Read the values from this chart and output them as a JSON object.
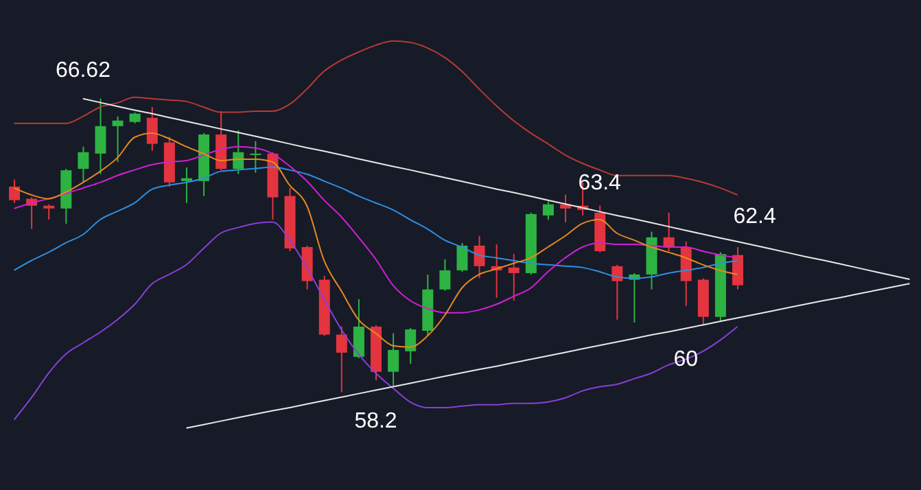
{
  "chart_data": {
    "type": "candlestick",
    "categories": [
      null,
      null,
      null,
      null,
      null,
      null,
      null,
      null,
      null,
      null,
      null,
      null,
      null,
      null,
      null,
      null,
      null,
      null,
      null,
      null,
      null,
      null,
      null,
      null,
      null,
      null,
      null,
      null,
      null,
      null,
      null,
      null,
      null,
      null,
      null,
      null,
      null,
      null,
      null,
      null,
      null,
      null,
      null,
      null,
      null,
      null,
      null,
      null,
      null,
      null,
      null,
      null,
      null
    ],
    "colors": [
      "#e3343f",
      "#e3343f",
      "#e3343f",
      "#2db342",
      "#2db342",
      "#2db342",
      "#2db342",
      "#2db342",
      "#e3343f",
      "#e3343f",
      "#2db342",
      "#2db342",
      "#e3343f",
      "#2db342",
      "#2db342",
      "#e3343f",
      "#e3343f",
      "#e3343f",
      "#e3343f",
      "#e3343f",
      "#2db342",
      "#e3343f",
      "#2db342",
      "#2db342",
      "#2db342",
      "#2db342",
      "#2db342",
      "#e3343f",
      "#e3343f",
      "#e3343f",
      "#2db342",
      "#2db342",
      "#e3343f",
      "#e3343f",
      "#e3343f",
      "#e3343f",
      "#2db342",
      "#2db342",
      "#e3343f",
      "#e3343f",
      "#e3343f",
      "#2db342",
      "#e3343f",
      null,
      null,
      null,
      null,
      null,
      null,
      null,
      null,
      null,
      null
    ],
    "ohlc": [
      [
        64.09,
        64.29,
        63.62,
        63.7
      ],
      [
        63.74,
        63.78,
        62.87,
        63.54
      ],
      [
        63.54,
        63.58,
        63.14,
        63.46
      ],
      [
        63.46,
        64.6,
        63.02,
        64.56
      ],
      [
        64.6,
        65.24,
        64.21,
        65.08
      ],
      [
        65.04,
        66.62,
        64.45,
        65.83
      ],
      [
        65.83,
        66.11,
        64.8,
        65.99
      ],
      [
        65.95,
        66.22,
        65.91,
        66.19
      ],
      [
        66.07,
        66.38,
        65.12,
        65.32
      ],
      [
        65.36,
        65.52,
        64.09,
        64.21
      ],
      [
        64.25,
        64.64,
        63.62,
        64.33
      ],
      [
        64.25,
        65.63,
        63.82,
        65.59
      ],
      [
        65.59,
        66.26,
        64.56,
        64.6
      ],
      [
        64.6,
        65.71,
        64.45,
        65.08
      ],
      [
        65.0,
        65.4,
        64.49,
        65.04
      ],
      [
        65.04,
        65.08,
        63.14,
        63.78
      ],
      [
        63.82,
        64.05,
        62.23,
        62.31
      ],
      [
        62.35,
        62.39,
        61.13,
        61.37
      ],
      [
        61.41,
        61.52,
        59.79,
        59.83
      ],
      [
        59.83,
        60.06,
        58.17,
        59.31
      ],
      [
        59.19,
        60.85,
        59.15,
        60.06
      ],
      [
        60.06,
        60.1,
        58.52,
        58.76
      ],
      [
        58.76,
        59.87,
        58.36,
        59.39
      ],
      [
        59.35,
        60.02,
        58.99,
        59.98
      ],
      [
        59.94,
        61.56,
        59.79,
        61.13
      ],
      [
        61.13,
        62.0,
        61.09,
        61.68
      ],
      [
        61.68,
        62.47,
        61.64,
        62.39
      ],
      [
        62.39,
        62.67,
        61.45,
        61.8
      ],
      [
        61.8,
        62.43,
        60.89,
        61.68
      ],
      [
        61.76,
        62.15,
        60.81,
        61.6
      ],
      [
        61.6,
        63.34,
        61.56,
        63.3
      ],
      [
        63.26,
        63.66,
        63.14,
        63.58
      ],
      [
        63.58,
        63.86,
        63.06,
        63.46
      ],
      [
        63.54,
        64.21,
        63.26,
        63.42
      ],
      [
        63.34,
        63.54,
        62.2,
        62.23
      ],
      [
        61.8,
        61.84,
        60.26,
        61.37
      ],
      [
        61.41,
        61.6,
        60.18,
        61.56
      ],
      [
        61.56,
        62.79,
        61.13,
        62.63
      ],
      [
        62.63,
        63.34,
        62.23,
        62.35
      ],
      [
        62.35,
        62.51,
        60.65,
        61.37
      ],
      [
        61.41,
        61.45,
        60.1,
        60.34
      ],
      [
        60.34,
        62.2,
        60.22,
        62.15
      ],
      [
        62.12,
        62.35,
        61.13,
        61.25
      ],
      null,
      null,
      null,
      null,
      null,
      null,
      null,
      null,
      null,
      null
    ],
    "series": [
      {
        "type": "line",
        "color": "#b83a34",
        "values": [
          65.91,
          65.91,
          65.91,
          65.91,
          66.11,
          66.38,
          66.5,
          66.66,
          66.62,
          66.58,
          66.54,
          66.38,
          66.23,
          66.23,
          66.26,
          66.26,
          66.46,
          66.9,
          67.41,
          67.73,
          67.96,
          68.16,
          68.28,
          68.24,
          68.08,
          67.81,
          67.41,
          66.9,
          66.42,
          65.99,
          65.63,
          65.32,
          65.0,
          64.76,
          64.57,
          64.41,
          64.41,
          64.41,
          64.41,
          64.33,
          64.21,
          64.05,
          63.85,
          null,
          null,
          null,
          null,
          null,
          null,
          null,
          null,
          null,
          null
        ]
      },
      {
        "type": "line",
        "color": "#8a3fd8",
        "values": [
          57.38,
          58.01,
          58.72,
          59.27,
          59.59,
          59.9,
          60.26,
          60.7,
          61.29,
          61.56,
          61.84,
          62.31,
          62.75,
          62.91,
          63.03,
          63.07,
          62.55,
          61.76,
          60.85,
          59.98,
          59.27,
          58.72,
          58.29,
          57.89,
          57.73,
          57.73,
          57.77,
          57.81,
          57.81,
          57.85,
          57.85,
          57.89,
          58.01,
          58.21,
          58.33,
          58.4,
          58.56,
          58.72,
          58.96,
          59.12,
          59.35,
          59.67,
          60.06,
          null,
          null,
          null,
          null,
          null,
          null,
          null,
          null,
          null,
          null
        ]
      },
      {
        "type": "line",
        "color": "#2f8fe0",
        "values": [
          61.68,
          61.96,
          62.2,
          62.47,
          62.71,
          63.14,
          63.38,
          63.62,
          64.01,
          64.13,
          64.21,
          64.33,
          64.53,
          64.57,
          64.61,
          64.65,
          64.57,
          64.45,
          64.25,
          64.05,
          63.82,
          63.62,
          63.42,
          63.14,
          62.87,
          62.55,
          62.35,
          62.12,
          62.04,
          61.96,
          61.88,
          61.84,
          61.8,
          61.76,
          61.64,
          61.49,
          61.45,
          61.49,
          61.6,
          61.68,
          61.76,
          61.88,
          61.96,
          null,
          null,
          null,
          null,
          null,
          null,
          null,
          null,
          null,
          null
        ]
      },
      {
        "type": "line",
        "color": "#d21fd6",
        "values": [
          63.46,
          63.62,
          63.74,
          63.89,
          64.05,
          64.21,
          64.41,
          64.57,
          64.72,
          64.8,
          64.84,
          65.0,
          65.16,
          65.24,
          65.2,
          65.04,
          64.68,
          64.25,
          63.7,
          63.22,
          62.63,
          62.0,
          61.25,
          60.81,
          60.58,
          60.46,
          60.46,
          60.54,
          60.7,
          60.93,
          61.17,
          61.64,
          62.04,
          62.35,
          62.47,
          62.43,
          62.43,
          62.39,
          62.35,
          62.35,
          62.23,
          62.12,
          62.04,
          null,
          null,
          null,
          null,
          null,
          null,
          null,
          null,
          null,
          null
        ]
      },
      {
        "type": "line",
        "color": "#e8891e",
        "values": [
          64.05,
          63.85,
          63.74,
          63.93,
          64.21,
          64.53,
          64.92,
          65.51,
          65.63,
          65.47,
          65.24,
          65.04,
          64.84,
          64.88,
          64.88,
          64.8,
          64.13,
          63.54,
          61.96,
          61.09,
          60.26,
          59.87,
          59.51,
          59.47,
          59.79,
          60.38,
          61.17,
          61.56,
          61.72,
          61.88,
          62.04,
          62.35,
          62.67,
          63.03,
          63.14,
          62.75,
          62.55,
          62.35,
          62.2,
          62.04,
          61.84,
          61.68,
          61.56,
          null,
          null,
          null,
          null,
          null,
          null,
          null,
          null,
          null,
          null
        ]
      },
      {
        "type": "line",
        "color": "#e8e8e8",
        "values": [
          null,
          null,
          null,
          null,
          66.62,
          66.51,
          66.4,
          66.29,
          66.19,
          66.08,
          65.97,
          65.86,
          65.75,
          65.65,
          65.54,
          65.43,
          65.32,
          65.21,
          65.11,
          65.0,
          64.89,
          64.78,
          64.67,
          64.57,
          64.46,
          64.35,
          64.24,
          64.13,
          64.02,
          63.92,
          63.81,
          63.7,
          63.59,
          63.48,
          63.37,
          63.26,
          63.16,
          63.05,
          62.94,
          62.83,
          62.72,
          62.61,
          62.51,
          62.4,
          62.29,
          62.18,
          62.07,
          61.97,
          61.86,
          61.75,
          61.64,
          61.53,
          61.42
        ]
      },
      {
        "type": "line",
        "color": "#e8e8e8",
        "values": [
          null,
          null,
          null,
          null,
          null,
          null,
          null,
          null,
          null,
          null,
          57.14,
          57.24,
          57.34,
          57.44,
          57.54,
          57.64,
          57.73,
          57.83,
          57.93,
          58.03,
          58.13,
          58.23,
          58.33,
          58.43,
          58.53,
          58.63,
          58.73,
          58.83,
          58.92,
          59.02,
          59.12,
          59.22,
          59.32,
          59.42,
          59.52,
          59.62,
          59.72,
          59.82,
          59.91,
          60.01,
          60.11,
          60.21,
          60.31,
          60.41,
          60.51,
          60.61,
          60.71,
          60.81,
          60.9,
          61.0,
          61.1,
          61.2,
          61.3
        ]
      }
    ],
    "annotations": [
      {
        "text": "66.62",
        "y": 66.62
      },
      {
        "text": "63.4",
        "y": 63.4
      },
      {
        "text": "62.4",
        "y": 62.4
      },
      {
        "text": "60",
        "y": 60
      },
      {
        "text": "58.2",
        "y": 58.2
      }
    ]
  }
}
